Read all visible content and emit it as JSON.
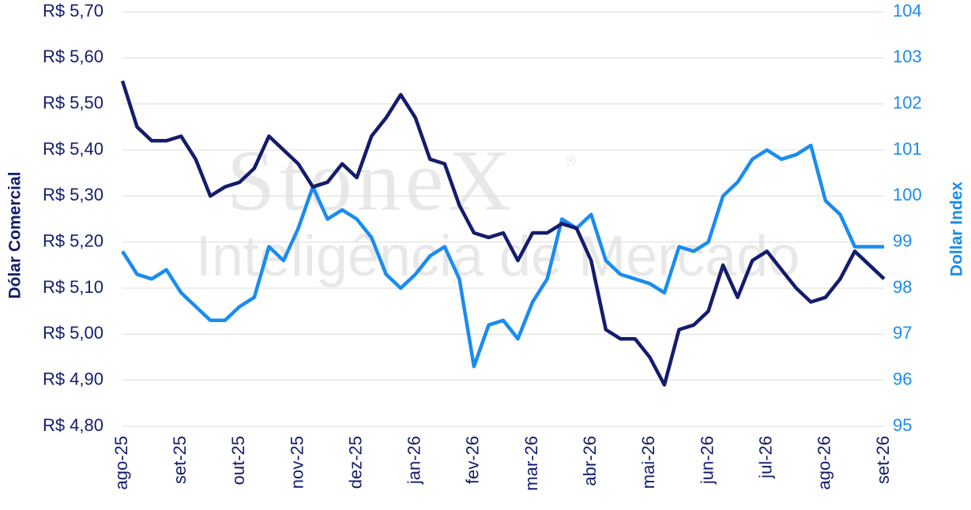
{
  "chart_data": {
    "type": "line",
    "y_label": "Dólar Comercial",
    "y2_label": "Dollar Index",
    "watermark": {
      "brand": "StoneX",
      "mark": "®",
      "subtitle": "Inteligência de Mercado"
    },
    "categories": [
      "ago-25",
      null,
      null,
      null,
      "set-25",
      null,
      null,
      null,
      "out-25",
      null,
      null,
      null,
      "nov-25",
      null,
      null,
      null,
      "dez-25",
      null,
      null,
      null,
      "jan-26",
      null,
      null,
      null,
      "fev-26",
      null,
      null,
      null,
      "mar-26",
      null,
      null,
      null,
      "abr-26",
      null,
      null,
      null,
      "mai-26",
      null,
      null,
      null,
      "jun-26",
      null,
      null,
      null,
      "jul-26",
      null,
      null,
      null,
      "ago-26",
      null,
      null,
      null,
      "set-26"
    ],
    "series": [
      {
        "name": "Dólar Comercial",
        "color": "#141c6e",
        "axis": "y",
        "values": [
          5.55,
          5.45,
          5.42,
          5.42,
          5.43,
          5.38,
          5.3,
          5.32,
          5.33,
          5.36,
          5.43,
          5.4,
          5.37,
          5.32,
          5.33,
          5.37,
          5.34,
          5.43,
          5.47,
          5.52,
          5.47,
          5.38,
          5.37,
          5.28,
          5.22,
          5.21,
          5.22,
          5.16,
          5.22,
          5.22,
          5.24,
          5.23,
          5.16,
          5.01,
          4.99,
          4.99,
          4.95,
          4.89,
          5.01,
          5.02,
          5.05,
          5.15,
          5.08,
          5.16,
          5.18,
          5.14,
          5.1,
          5.07,
          5.08,
          5.12,
          5.18,
          5.15,
          5.12
        ]
      },
      {
        "name": "Dollar Index",
        "color": "#1a8cf0",
        "axis": "y2",
        "values": [
          98.8,
          98.3,
          98.2,
          98.4,
          97.9,
          97.6,
          97.3,
          97.3,
          97.6,
          97.8,
          98.9,
          98.6,
          99.3,
          100.2,
          99.5,
          99.7,
          99.5,
          99.1,
          98.3,
          98.0,
          98.3,
          98.7,
          98.9,
          98.2,
          96.3,
          97.2,
          97.3,
          96.9,
          97.7,
          98.2,
          99.5,
          99.3,
          99.6,
          98.6,
          98.3,
          98.2,
          98.1,
          97.9,
          98.9,
          98.8,
          99.0,
          100.0,
          100.3,
          100.8,
          101.0,
          100.8,
          100.9,
          101.1,
          99.9,
          99.6,
          98.9,
          98.9,
          98.9
        ]
      }
    ],
    "ylim": [
      4.8,
      5.7
    ],
    "yticks": [
      {
        "value": 4.8,
        "label": "R$ 4,80"
      },
      {
        "value": 4.9,
        "label": "R$ 4,90"
      },
      {
        "value": 5.0,
        "label": "R$ 5,00"
      },
      {
        "value": 5.1,
        "label": "R$ 5,10"
      },
      {
        "value": 5.2,
        "label": "R$ 5,20"
      },
      {
        "value": 5.3,
        "label": "R$ 5,30"
      },
      {
        "value": 5.4,
        "label": "R$ 5,40"
      },
      {
        "value": 5.5,
        "label": "R$ 5,50"
      },
      {
        "value": 5.6,
        "label": "R$ 5,60"
      },
      {
        "value": 5.7,
        "label": "R$ 5,70"
      }
    ],
    "y2lim": [
      95,
      104
    ],
    "y2ticks": [
      95,
      96,
      97,
      98,
      99,
      100,
      101,
      102,
      103,
      104
    ],
    "grid": true
  }
}
